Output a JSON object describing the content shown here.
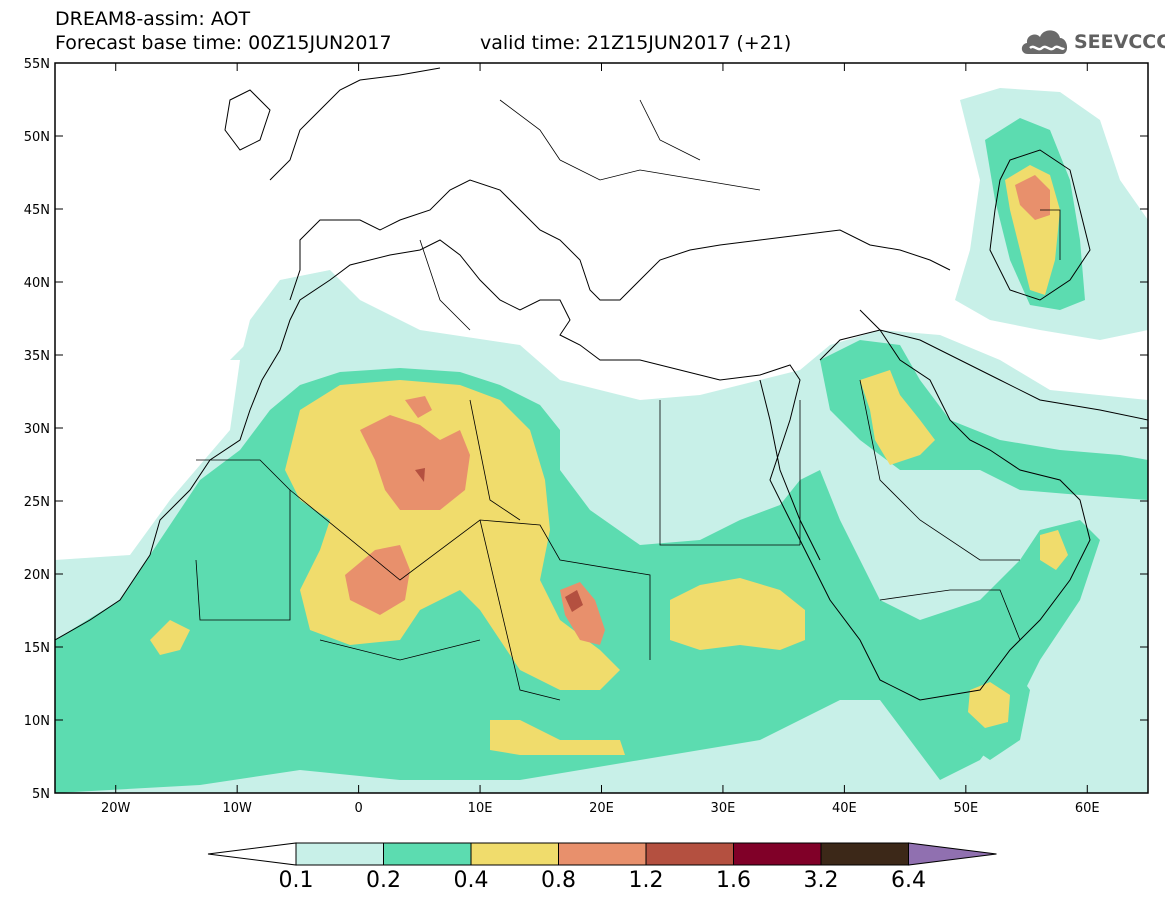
{
  "header": {
    "line1": "DREAM8-assim: AOT",
    "line2_left": "Forecast base time: 00Z15JUN2017",
    "line2_right": "valid time: 21Z15JUN2017 (+21)",
    "logo_text": "SEEVCCC",
    "logo_icon": "cloud-icon"
  },
  "map": {
    "lon_range": [
      -25,
      65
    ],
    "lat_range": [
      5,
      55
    ],
    "lon_ticks": [
      {
        "value": -20,
        "label": "20W"
      },
      {
        "value": -10,
        "label": "10W"
      },
      {
        "value": 0,
        "label": "0"
      },
      {
        "value": 10,
        "label": "10E"
      },
      {
        "value": 20,
        "label": "20E"
      },
      {
        "value": 30,
        "label": "30E"
      },
      {
        "value": 40,
        "label": "40E"
      },
      {
        "value": 50,
        "label": "50E"
      },
      {
        "value": 60,
        "label": "60E"
      }
    ],
    "lat_ticks": [
      {
        "value": 55,
        "label": "55N"
      },
      {
        "value": 50,
        "label": "50N"
      },
      {
        "value": 45,
        "label": "45N"
      },
      {
        "value": 40,
        "label": "40N"
      },
      {
        "value": 35,
        "label": "35N"
      },
      {
        "value": 30,
        "label": "30N"
      },
      {
        "value": 25,
        "label": "25N"
      },
      {
        "value": 20,
        "label": "20N"
      },
      {
        "value": 15,
        "label": "15N"
      },
      {
        "value": 10,
        "label": "10N"
      },
      {
        "value": 5,
        "label": "5N"
      }
    ]
  },
  "colorbar": {
    "bins": [
      {
        "color": "#c8f0e8"
      },
      {
        "color": "#5cdcb0"
      },
      {
        "color": "#f0dc6c"
      },
      {
        "color": "#e8906c"
      },
      {
        "color": "#b45040"
      },
      {
        "color": "#800028"
      },
      {
        "color": "#3c2818"
      }
    ],
    "min_arrow_color": "#ffffff",
    "max_arrow_color": "#9070b0",
    "labels": [
      "0.1",
      "0.2",
      "0.4",
      "0.8",
      "1.2",
      "1.6",
      "3.2",
      "6.4"
    ]
  }
}
